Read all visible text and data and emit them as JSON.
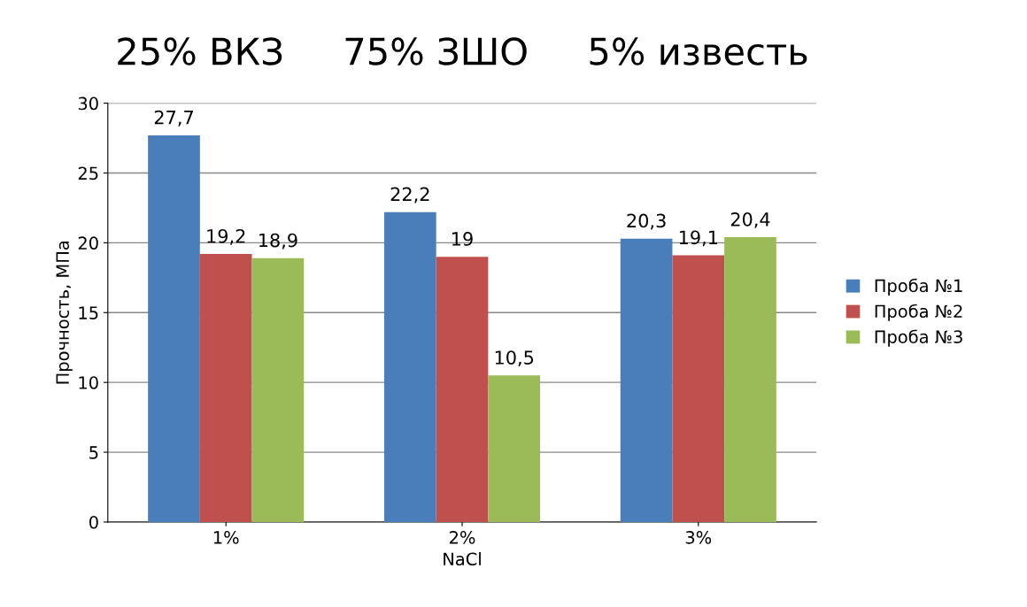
{
  "chart_data": {
    "type": "bar",
    "title": "25% ВКЗ     75% ЗШО     5% известь",
    "xlabel": "NaCl",
    "ylabel": "Прочность, МПа",
    "categories": [
      "1%",
      "2%",
      "3%"
    ],
    "series": [
      {
        "name": "Проба №1",
        "color": "#4a7ebb",
        "values": [
          27.7,
          22.2,
          20.3
        ],
        "value_labels": [
          "27,7",
          "22,2",
          "20,3"
        ]
      },
      {
        "name": "Проба №2",
        "color": "#c0504d",
        "values": [
          19.2,
          19,
          19.1
        ],
        "value_labels": [
          "19,2",
          "19",
          "19,1"
        ]
      },
      {
        "name": "Проба №3",
        "color": "#9bbb59",
        "values": [
          18.9,
          10.5,
          20.4
        ],
        "value_labels": [
          "18,9",
          "10,5",
          "20,4"
        ]
      }
    ],
    "ylim": [
      0,
      30
    ],
    "yticks": [
      0,
      5,
      10,
      15,
      20,
      25,
      30
    ],
    "grid": "y",
    "legend": "right"
  }
}
